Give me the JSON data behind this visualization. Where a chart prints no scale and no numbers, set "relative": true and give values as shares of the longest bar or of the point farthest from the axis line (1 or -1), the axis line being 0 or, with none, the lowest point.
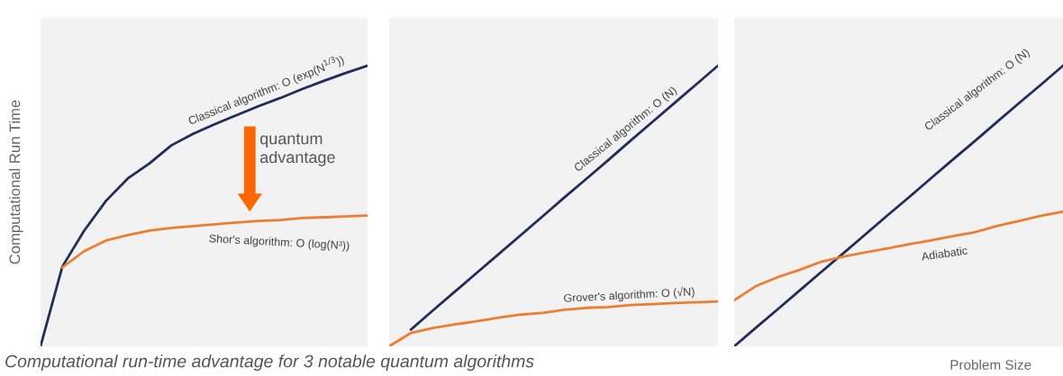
{
  "chart_data": [
    {
      "type": "line",
      "relative": true,
      "ylabel": "Computational Run Time",
      "marker": "none",
      "line_style": "solid",
      "categories": [
        null,
        null,
        null,
        null,
        null,
        null,
        null,
        null,
        null,
        null,
        null,
        null,
        null,
        null,
        null,
        null
      ],
      "series": [
        {
          "color": "#1f2d5c",
          "values": [
            0,
            0.284,
            0.412,
            0.518,
            0.598,
            0.652,
            0.716,
            0.757,
            0.792,
            0.824,
            0.856,
            0.885,
            0.917,
            0.946,
            0.974,
            1
          ]
        },
        {
          "color": "#ed7d31",
          "values": [
            null,
            0.281,
            0.339,
            0.377,
            0.396,
            0.412,
            0.422,
            0.428,
            0.435,
            0.441,
            0.447,
            0.45,
            0.457,
            0.46,
            0.463,
            0.466
          ]
        }
      ],
      "annotations": [
        "Classical algorithm: O (exp(N$^{1/3}$))",
        "quantum\nadvantage",
        "Shor's algorithm: O (log(N³))",
        "Computational run-time advantage for 3 notable quantum algorithms"
      ]
    },
    {
      "type": "line",
      "relative": true,
      "marker": "none",
      "line_style": "solid",
      "categories": [
        null,
        null,
        null,
        null,
        null,
        null,
        null,
        null,
        null,
        null,
        null,
        null,
        null,
        null,
        null,
        null
      ],
      "series": [
        {
          "color": "#1f2d5c",
          "values": [
            null,
            0.06,
            0.128,
            0.195,
            0.262,
            0.329,
            0.396,
            0.463,
            0.531,
            0.597,
            0.664,
            0.732,
            0.799,
            0.866,
            0.933,
            1
          ]
        },
        {
          "color": "#ed7d31",
          "values": [
            0,
            0.048,
            0.065,
            0.078,
            0.089,
            0.102,
            0.113,
            0.119,
            0.13,
            0.137,
            0.14,
            0.147,
            0.15,
            0.154,
            0.157,
            0.16
          ]
        }
      ],
      "annotations": [
        "Classical algorithm: O (N)",
        "Grover's algorithm: O (√N)"
      ]
    },
    {
      "type": "line",
      "relative": true,
      "xlabel": "Problem Size",
      "marker": "none",
      "line_style": "solid",
      "categories": [
        null,
        null,
        null,
        null,
        null,
        null,
        null,
        null,
        null,
        null,
        null,
        null,
        null,
        null,
        null,
        null
      ],
      "series": [
        {
          "color": "#1f2d5c",
          "values": [
            0,
            0.067,
            0.133,
            0.2,
            0.267,
            0.333,
            0.4,
            0.467,
            0.533,
            0.6,
            0.667,
            0.733,
            0.8,
            0.867,
            0.933,
            1
          ]
        },
        {
          "color": "#ed7d31",
          "values": [
            0.164,
            0.215,
            0.247,
            0.273,
            0.302,
            0.32,
            0.335,
            0.349,
            0.364,
            0.378,
            0.393,
            0.407,
            0.429,
            0.447,
            0.465,
            0.48
          ]
        }
      ],
      "annotations": [
        "Classical algorithm: O (N)",
        "Adiabatic"
      ]
    }
  ]
}
